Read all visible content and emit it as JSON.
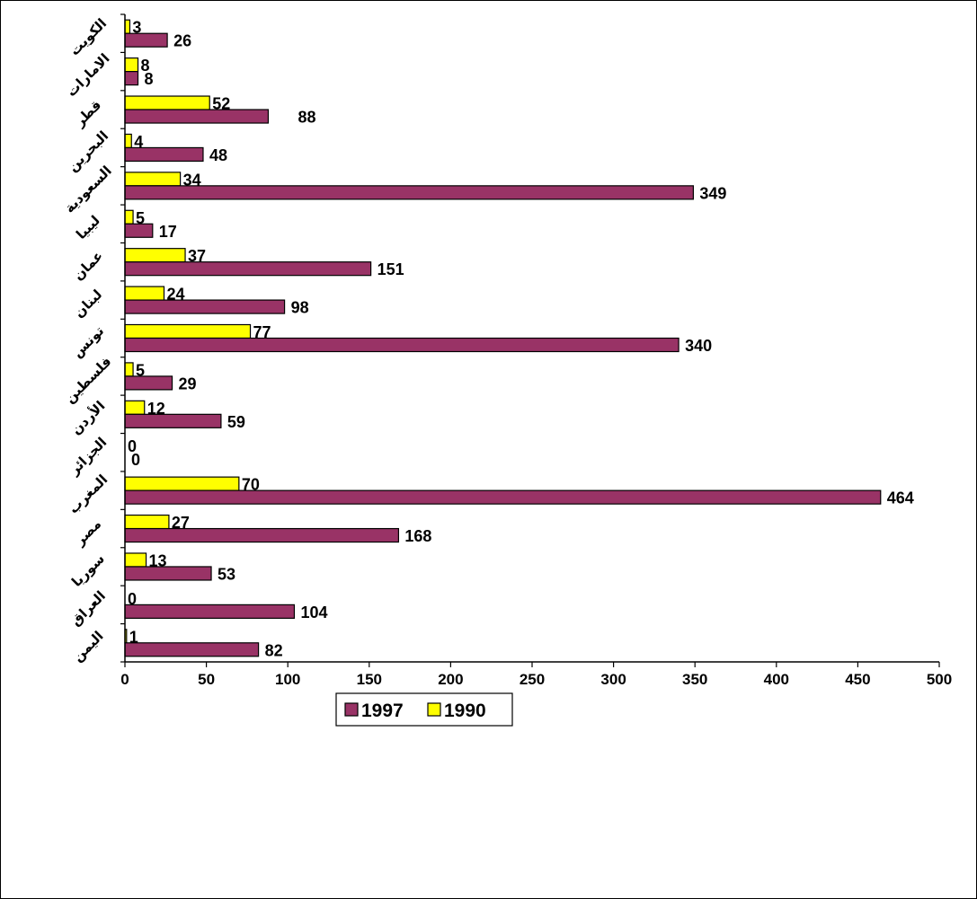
{
  "chart_data": {
    "type": "bar",
    "orientation": "horizontal",
    "categories": [
      "اليمن",
      "العراق",
      "سوريا",
      "مصر",
      "المغرب",
      "الجزائر",
      "الأردن",
      "فلسطين",
      "تونس",
      "لبنان",
      "عمان",
      "ليبيا",
      "السعودية",
      "البحرين",
      "قطر",
      "الامارات",
      "الكويت"
    ],
    "series": [
      {
        "name": "1997",
        "color": "#993366",
        "values": [
          82,
          104,
          53,
          168,
          464,
          0,
          59,
          29,
          340,
          98,
          151,
          17,
          349,
          48,
          88,
          8,
          26
        ]
      },
      {
        "name": "1990",
        "color": "#FFFF00",
        "values": [
          1,
          0,
          13,
          27,
          70,
          0,
          12,
          5,
          77,
          24,
          37,
          5,
          34,
          4,
          52,
          8,
          3
        ]
      }
    ],
    "xlim": [
      0,
      500
    ],
    "xticks": [
      0,
      50,
      100,
      150,
      200,
      250,
      300,
      350,
      400,
      450,
      500
    ],
    "grid": false,
    "legend_position": "bottom",
    "title": "",
    "xlabel": "",
    "ylabel": ""
  }
}
